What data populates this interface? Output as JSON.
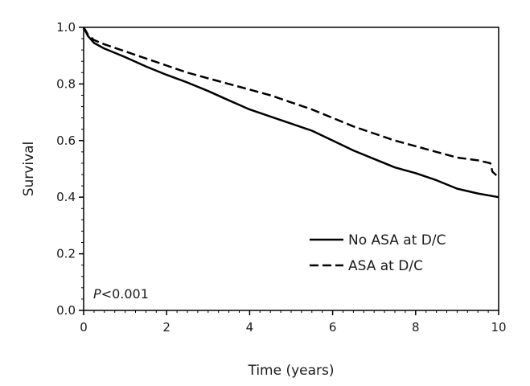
{
  "chart_data": {
    "type": "line",
    "xlabel": "Time (years)",
    "ylabel": "Survival",
    "xlim": [
      0,
      10
    ],
    "ylim": [
      0,
      1
    ],
    "xticks": [
      0,
      2,
      4,
      6,
      8,
      10
    ],
    "xtick_labels": [
      "0",
      "2",
      "4",
      "6",
      "8",
      "10"
    ],
    "yticks": [
      0,
      0.2,
      0.4,
      0.6,
      0.8,
      1.0
    ],
    "ytick_labels": [
      "0.0",
      "0.2",
      "0.4",
      "0.6",
      "0.8",
      "1.0"
    ],
    "grid": false,
    "legend_position": "lower-right",
    "annotation": {
      "italic": "P",
      "rest": "<0.001"
    },
    "series": [
      {
        "name": "No ASA at D/C",
        "style": "solid",
        "color": "#000000",
        "x": [
          0,
          0.1,
          0.25,
          0.5,
          1,
          1.5,
          2,
          2.5,
          3,
          3.5,
          4,
          4.5,
          5,
          5.5,
          6,
          6.5,
          7,
          7.5,
          8,
          8.5,
          9,
          9.5,
          10
        ],
        "y": [
          1.0,
          0.97,
          0.945,
          0.925,
          0.895,
          0.862,
          0.832,
          0.805,
          0.775,
          0.742,
          0.71,
          0.685,
          0.66,
          0.635,
          0.6,
          0.565,
          0.535,
          0.505,
          0.485,
          0.46,
          0.43,
          0.413,
          0.4
        ]
      },
      {
        "name": "ASA at D/C",
        "style": "dashed",
        "color": "#000000",
        "x": [
          0,
          0.1,
          0.25,
          0.5,
          1,
          1.5,
          2,
          2.5,
          3,
          3.5,
          4,
          4.5,
          5,
          5.5,
          6,
          6.5,
          7,
          7.5,
          8,
          8.5,
          9,
          9.5,
          9.8,
          9.85,
          10
        ],
        "y": [
          1.0,
          0.975,
          0.955,
          0.94,
          0.915,
          0.89,
          0.865,
          0.84,
          0.82,
          0.8,
          0.78,
          0.76,
          0.735,
          0.71,
          0.68,
          0.65,
          0.625,
          0.6,
          0.58,
          0.56,
          0.54,
          0.53,
          0.52,
          0.49,
          0.47
        ]
      }
    ]
  }
}
